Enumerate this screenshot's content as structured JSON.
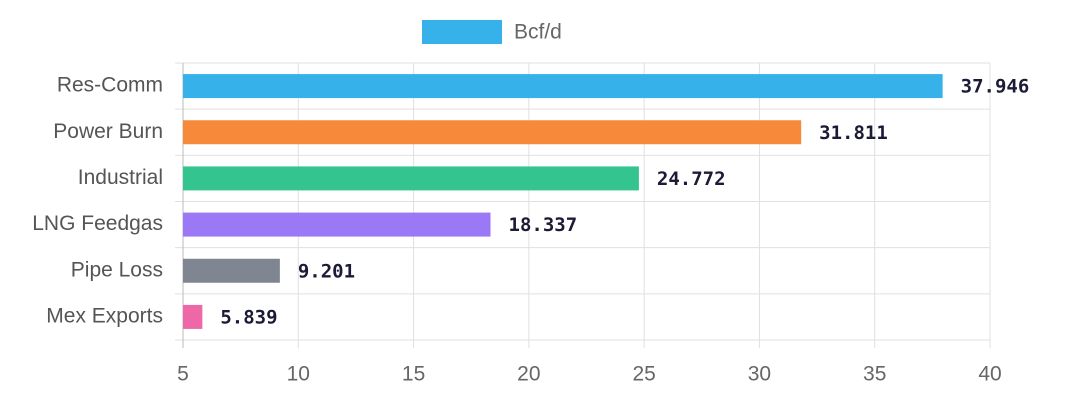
{
  "chart_data": {
    "type": "bar",
    "orientation": "horizontal",
    "categories": [
      "Res-Comm",
      "Power Burn",
      "Industrial",
      "LNG Feedgas",
      "Pipe Loss",
      "Mex Exports"
    ],
    "series": [
      {
        "name": "Bcf/d",
        "color": "#36b1ea",
        "values": [
          37.946,
          31.811,
          24.772,
          18.337,
          9.201,
          5.839
        ]
      }
    ],
    "colors": [
      "#36b1ea",
      "#f7893b",
      "#34c490",
      "#9b78f5",
      "#7f8591",
      "#ee68a8"
    ],
    "xlim": [
      5,
      40
    ],
    "xticks": [
      5,
      10,
      15,
      20,
      25,
      30,
      35,
      40
    ],
    "grid": true,
    "legend": "top"
  }
}
